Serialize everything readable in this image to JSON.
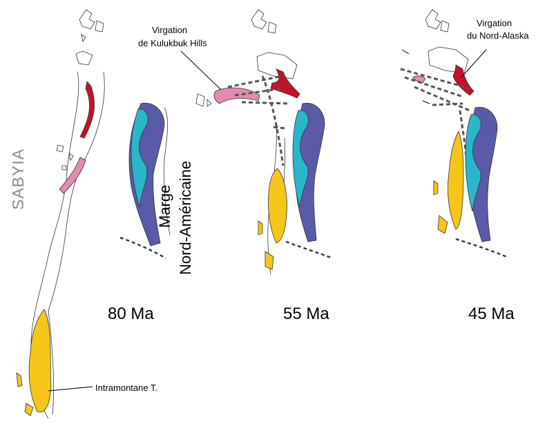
{
  "colors": {
    "red": "#c4122a",
    "pink": "#e58ab3",
    "yellow": "#f5c518",
    "cyan": "#2ab6c8",
    "purple": "#5a5aa8"
  },
  "labels": {
    "sabyia": "SABYIA",
    "marge_line1": "Marge",
    "marge_line2": "Nord-Américaine",
    "kulukbuk_line1": "Virgation",
    "kulukbuk_line2": "de Kulukbuk Hills",
    "nord_alaska_line1": "Virgation",
    "nord_alaska_line2": "du Nord-Alaska",
    "intramontane": "Intramontane T."
  },
  "panels": [
    {
      "age": "80 Ma"
    },
    {
      "age": "55 Ma"
    },
    {
      "age": "45 Ma"
    }
  ]
}
